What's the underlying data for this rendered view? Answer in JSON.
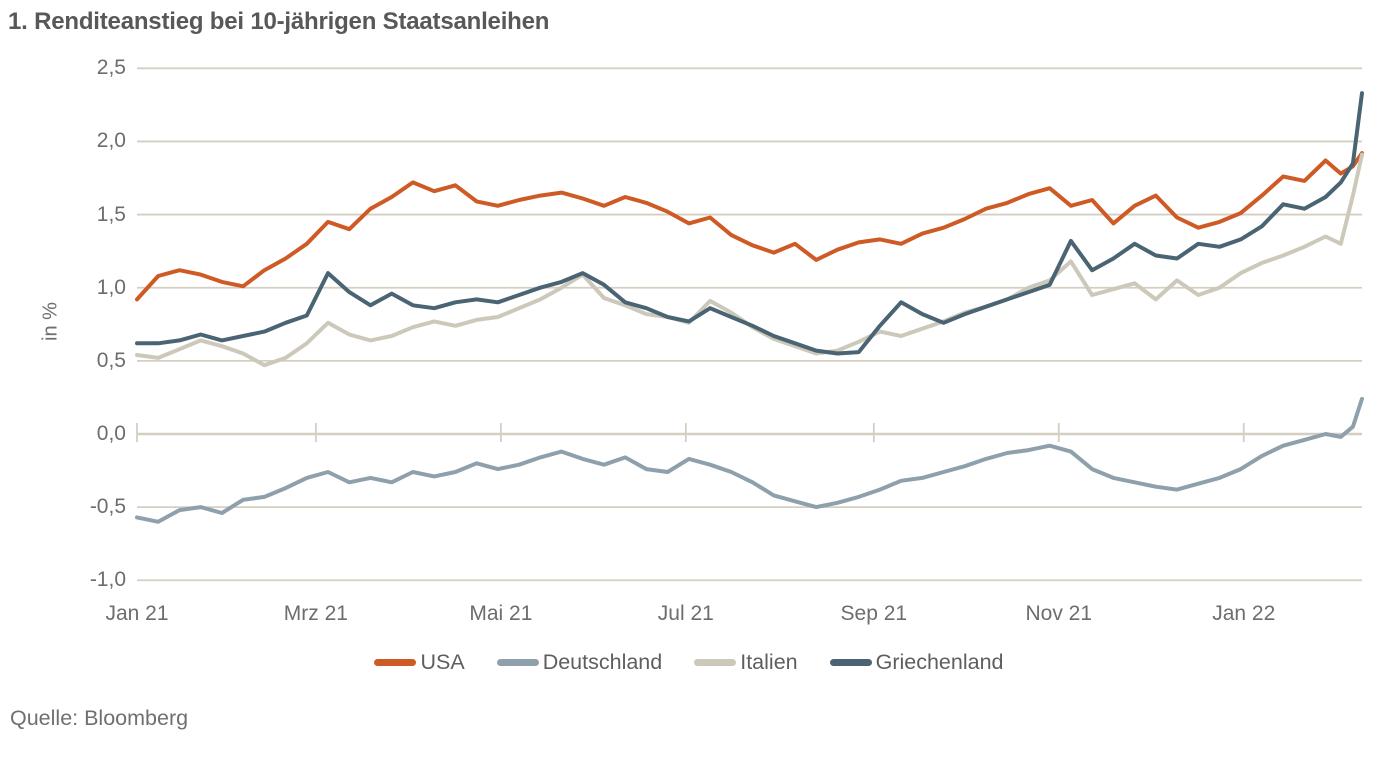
{
  "title": "1. Renditeanstieg bei 10-jährigen Staatsanleihen",
  "source": "Quelle: Bloomberg",
  "colors": {
    "gridline": "#d5cfc2",
    "title_text": "#58585a",
    "axis_text": "#6d6d6d",
    "legend_text": "#5e5e5e"
  },
  "chart_data": {
    "type": "line",
    "title": "1. Renditeanstieg bei 10-jährigen Staatsanleihen",
    "xlabel": "",
    "ylabel": "in %",
    "ylim": [
      -1.0,
      2.5
    ],
    "grid": "horizontal",
    "legend_position": "bottom",
    "x_unit": "days since 2021-01-01",
    "x": [
      0,
      7,
      14,
      21,
      28,
      35,
      42,
      49,
      56,
      63,
      70,
      77,
      84,
      91,
      98,
      105,
      112,
      119,
      126,
      133,
      140,
      147,
      154,
      161,
      168,
      175,
      182,
      189,
      196,
      203,
      210,
      217,
      224,
      231,
      238,
      245,
      252,
      259,
      266,
      273,
      280,
      287,
      294,
      301,
      308,
      315,
      322,
      329,
      336,
      343,
      350,
      357,
      364,
      371,
      378,
      385,
      392,
      397,
      401,
      404
    ],
    "x_ticks": [
      {
        "day": 0,
        "label": "Jan 21"
      },
      {
        "day": 59,
        "label": "Mrz 21"
      },
      {
        "day": 120,
        "label": "Mai 21"
      },
      {
        "day": 181,
        "label": "Jul 21"
      },
      {
        "day": 243,
        "label": "Sep 21"
      },
      {
        "day": 304,
        "label": "Nov 21"
      },
      {
        "day": 365,
        "label": "Jan 22"
      }
    ],
    "y_ticks": [
      {
        "value": 2.5,
        "label": "2,5"
      },
      {
        "value": 2.0,
        "label": "2,0"
      },
      {
        "value": 1.5,
        "label": "1,5"
      },
      {
        "value": 1.0,
        "label": "1,0"
      },
      {
        "value": 0.5,
        "label": "0,5"
      },
      {
        "value": 0.0,
        "label": "0,0"
      },
      {
        "value": -0.5,
        "label": "-0,5"
      },
      {
        "value": -1.0,
        "label": "-1,0"
      }
    ],
    "series": [
      {
        "name": "USA",
        "color": "#ce5b25",
        "values": [
          0.92,
          1.08,
          1.12,
          1.09,
          1.04,
          1.01,
          1.12,
          1.2,
          1.3,
          1.45,
          1.4,
          1.54,
          1.62,
          1.72,
          1.66,
          1.7,
          1.59,
          1.56,
          1.6,
          1.63,
          1.65,
          1.61,
          1.56,
          1.62,
          1.58,
          1.52,
          1.44,
          1.48,
          1.36,
          1.29,
          1.24,
          1.3,
          1.19,
          1.26,
          1.31,
          1.33,
          1.3,
          1.37,
          1.41,
          1.47,
          1.54,
          1.58,
          1.64,
          1.68,
          1.56,
          1.6,
          1.44,
          1.56,
          1.63,
          1.48,
          1.41,
          1.45,
          1.51,
          1.63,
          1.76,
          1.73,
          1.87,
          1.78,
          1.83,
          1.92
        ]
      },
      {
        "name": "Deutschland",
        "color": "#8ea0ab",
        "values": [
          -0.57,
          -0.6,
          -0.52,
          -0.5,
          -0.54,
          -0.45,
          -0.43,
          -0.37,
          -0.3,
          -0.26,
          -0.33,
          -0.3,
          -0.33,
          -0.26,
          -0.29,
          -0.26,
          -0.2,
          -0.24,
          -0.21,
          -0.16,
          -0.12,
          -0.17,
          -0.21,
          -0.16,
          -0.24,
          -0.26,
          -0.17,
          -0.21,
          -0.26,
          -0.33,
          -0.42,
          -0.46,
          -0.5,
          -0.47,
          -0.43,
          -0.38,
          -0.32,
          -0.3,
          -0.26,
          -0.22,
          -0.17,
          -0.13,
          -0.11,
          -0.08,
          -0.12,
          -0.24,
          -0.3,
          -0.33,
          -0.36,
          -0.38,
          -0.34,
          -0.3,
          -0.24,
          -0.15,
          -0.08,
          -0.04,
          0.0,
          -0.02,
          0.05,
          0.24
        ]
      },
      {
        "name": "Italien",
        "color": "#cdc9ba",
        "values": [
          0.54,
          0.52,
          0.58,
          0.64,
          0.6,
          0.55,
          0.47,
          0.52,
          0.62,
          0.76,
          0.68,
          0.64,
          0.67,
          0.73,
          0.77,
          0.74,
          0.78,
          0.8,
          0.86,
          0.92,
          1.0,
          1.09,
          0.93,
          0.88,
          0.82,
          0.8,
          0.76,
          0.91,
          0.83,
          0.73,
          0.65,
          0.6,
          0.55,
          0.57,
          0.63,
          0.7,
          0.67,
          0.72,
          0.77,
          0.83,
          0.87,
          0.92,
          1.0,
          1.05,
          1.18,
          0.95,
          0.99,
          1.03,
          0.92,
          1.05,
          0.95,
          1.0,
          1.1,
          1.17,
          1.22,
          1.28,
          1.35,
          1.3,
          1.63,
          1.91
        ]
      },
      {
        "name": "Griechenland",
        "color": "#4a6474",
        "values": [
          0.62,
          0.62,
          0.64,
          0.68,
          0.64,
          0.67,
          0.7,
          0.76,
          0.81,
          1.1,
          0.97,
          0.88,
          0.96,
          0.88,
          0.86,
          0.9,
          0.92,
          0.9,
          0.95,
          1.0,
          1.04,
          1.1,
          1.02,
          0.9,
          0.86,
          0.8,
          0.77,
          0.86,
          0.8,
          0.74,
          0.67,
          0.62,
          0.57,
          0.55,
          0.56,
          0.74,
          0.9,
          0.82,
          0.76,
          0.82,
          0.87,
          0.92,
          0.97,
          1.02,
          1.32,
          1.12,
          1.2,
          1.3,
          1.22,
          1.2,
          1.3,
          1.28,
          1.33,
          1.42,
          1.57,
          1.54,
          1.62,
          1.72,
          1.85,
          2.33
        ]
      }
    ]
  }
}
